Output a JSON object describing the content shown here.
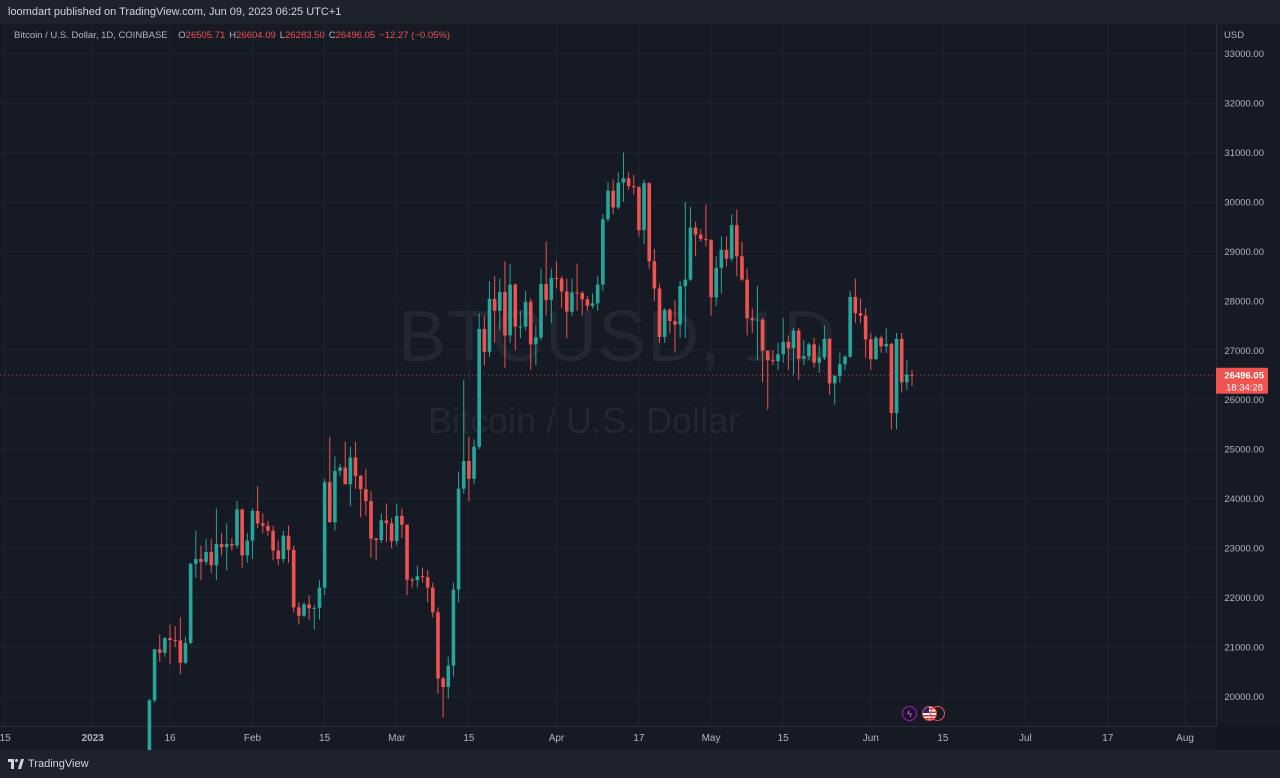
{
  "header": {
    "published": "loomdart published on TradingView.com, Jun 09, 2023 06:25 UTC+1"
  },
  "legend": {
    "symbol": "Bitcoin / U.S. Dollar, 1D, COINBASE",
    "o_label": "O",
    "o_value": "26505.71",
    "h_label": "H",
    "h_value": "26604.09",
    "l_label": "L",
    "l_value": "26283.50",
    "c_label": "C",
    "c_value": "26496.05",
    "change": "−12.27 (−0.05%)"
  },
  "currency": "USD",
  "watermark": {
    "line1": "BTCUSD, 1D",
    "line2": "Bitcoin / U.S. Dollar"
  },
  "footer": {
    "brand": "TradingView"
  },
  "badges": {
    "lightning": "lightning-icon",
    "flag": "us-flag-icon"
  },
  "colors": {
    "up": "#26a69a",
    "down": "#ef5350",
    "background": "#161a25",
    "grid": "#1f2431"
  },
  "chart_data": {
    "type": "candlestick",
    "title": "Bitcoin / U.S. Dollar, 1D, COINBASE",
    "ylim": [
      19400,
      33600
    ],
    "y_ticks": [
      20000,
      21000,
      22000,
      23000,
      24000,
      25000,
      26000,
      27000,
      28000,
      29000,
      30000,
      31000,
      32000,
      33000
    ],
    "y_tick_labels": [
      "20000.00",
      "21000.00",
      "22000.00",
      "23000.00",
      "24000.00",
      "25000.00",
      "26000.00",
      "27000.00",
      "28000.00",
      "29000.00",
      "30000.00",
      "31000.00",
      "32000.00",
      "33000.00"
    ],
    "x_ticks": [
      {
        "label": "15",
        "date": "2022-12-15"
      },
      {
        "label": "2023",
        "date": "2023-01-01"
      },
      {
        "label": "16",
        "date": "2023-01-16"
      },
      {
        "label": "Feb",
        "date": "2023-02-01"
      },
      {
        "label": "15",
        "date": "2023-02-15"
      },
      {
        "label": "Mar",
        "date": "2023-03-01"
      },
      {
        "label": "15",
        "date": "2023-03-15"
      },
      {
        "label": "Apr",
        "date": "2023-04-01"
      },
      {
        "label": "17",
        "date": "2023-04-17"
      },
      {
        "label": "May",
        "date": "2023-05-01"
      },
      {
        "label": "15",
        "date": "2023-05-15"
      },
      {
        "label": "Jun",
        "date": "2023-06-01"
      },
      {
        "label": "15",
        "date": "2023-06-15"
      },
      {
        "label": "Jul",
        "date": "2023-07-01"
      },
      {
        "label": "17",
        "date": "2023-07-17"
      },
      {
        "label": "Aug",
        "date": "2023-08-01"
      }
    ],
    "x_range": [
      "2022-12-14",
      "2023-08-07"
    ],
    "last_price_label": "26496.05",
    "countdown_label": "18:34:28",
    "last_price": 26496.05,
    "candles": [
      [
        "2023-01-12",
        18850,
        19950,
        18750,
        19920
      ],
      [
        "2023-01-13",
        19920,
        20960,
        19880,
        20950
      ],
      [
        "2023-01-14",
        20950,
        21250,
        20700,
        20880
      ],
      [
        "2023-01-15",
        20880,
        21200,
        20800,
        21180
      ],
      [
        "2023-01-16",
        21180,
        21450,
        20650,
        21140
      ],
      [
        "2023-01-17",
        21140,
        21420,
        21000,
        21130
      ],
      [
        "2023-01-18",
        21130,
        21600,
        20450,
        20680
      ],
      [
        "2023-01-19",
        20680,
        21200,
        20650,
        21080
      ],
      [
        "2023-01-20",
        21080,
        22700,
        21050,
        22680
      ],
      [
        "2023-01-21",
        22680,
        23350,
        22400,
        22780
      ],
      [
        "2023-01-22",
        22780,
        23050,
        22350,
        22720
      ],
      [
        "2023-01-23",
        22720,
        23180,
        22650,
        22920
      ],
      [
        "2023-01-24",
        22920,
        23180,
        22500,
        22650
      ],
      [
        "2023-01-25",
        22650,
        23800,
        22350,
        23080
      ],
      [
        "2023-01-26",
        23080,
        23300,
        22850,
        23020
      ],
      [
        "2023-01-27",
        23020,
        23500,
        22550,
        23080
      ],
      [
        "2023-01-28",
        23080,
        23200,
        22950,
        23050
      ],
      [
        "2023-01-29",
        23050,
        23950,
        23000,
        23780
      ],
      [
        "2023-01-30",
        23780,
        23800,
        22600,
        22850
      ],
      [
        "2023-01-31",
        22850,
        23300,
        22700,
        23150
      ],
      [
        "2023-02-01",
        23150,
        23800,
        22780,
        23750
      ],
      [
        "2023-02-02",
        23750,
        24250,
        23400,
        23500
      ],
      [
        "2023-02-03",
        23500,
        23700,
        23300,
        23450
      ],
      [
        "2023-02-04",
        23450,
        23550,
        23250,
        23350
      ],
      [
        "2023-02-05",
        23350,
        23450,
        22750,
        22950
      ],
      [
        "2023-02-06",
        22950,
        23150,
        22650,
        22780
      ],
      [
        "2023-02-07",
        22780,
        23350,
        22700,
        23250
      ],
      [
        "2023-02-08",
        23250,
        23450,
        22700,
        22960
      ],
      [
        "2023-02-09",
        22960,
        23050,
        21700,
        21800
      ],
      [
        "2023-02-10",
        21800,
        21900,
        21450,
        21630
      ],
      [
        "2023-02-11",
        21630,
        21900,
        21600,
        21860
      ],
      [
        "2023-02-12",
        21860,
        22050,
        21550,
        21780
      ],
      [
        "2023-02-13",
        21780,
        21850,
        21350,
        21790
      ],
      [
        "2023-02-14",
        21790,
        22350,
        21550,
        22200
      ],
      [
        "2023-02-15",
        22200,
        24400,
        22050,
        24330
      ],
      [
        "2023-02-16",
        24330,
        25250,
        23550,
        23520
      ],
      [
        "2023-02-17",
        23520,
        24850,
        23350,
        24560
      ],
      [
        "2023-02-18",
        24560,
        24700,
        24450,
        24630
      ],
      [
        "2023-02-19",
        24630,
        25150,
        24300,
        24290
      ],
      [
        "2023-02-20",
        24290,
        25050,
        23850,
        24830
      ],
      [
        "2023-02-21",
        24830,
        25150,
        24200,
        24460
      ],
      [
        "2023-02-22",
        24460,
        24480,
        23620,
        24190
      ],
      [
        "2023-02-23",
        24190,
        24600,
        23650,
        23950
      ],
      [
        "2023-02-24",
        23950,
        24150,
        22800,
        23190
      ],
      [
        "2023-02-25",
        23190,
        23210,
        22750,
        23160
      ],
      [
        "2023-02-26",
        23160,
        23700,
        23100,
        23560
      ],
      [
        "2023-02-27",
        23560,
        23900,
        23120,
        23500
      ],
      [
        "2023-02-28",
        23500,
        23600,
        23000,
        23140
      ],
      [
        "2023-03-01",
        23140,
        23900,
        23050,
        23650
      ],
      [
        "2023-03-02",
        23650,
        23800,
        23200,
        23470
      ],
      [
        "2023-03-03",
        23470,
        23480,
        22050,
        22360
      ],
      [
        "2023-03-04",
        22360,
        22400,
        22200,
        22350
      ],
      [
        "2023-03-05",
        22350,
        22650,
        22200,
        22430
      ],
      [
        "2023-03-06",
        22430,
        22600,
        22300,
        22410
      ],
      [
        "2023-03-07",
        22410,
        22550,
        21900,
        22200
      ],
      [
        "2023-03-08",
        22200,
        22300,
        21600,
        21700
      ],
      [
        "2023-03-09",
        21700,
        21800,
        20050,
        20360
      ],
      [
        "2023-03-10",
        20360,
        20400,
        19570,
        20190
      ],
      [
        "2023-03-11",
        20190,
        20800,
        19950,
        20620
      ],
      [
        "2023-03-12",
        20620,
        22300,
        20400,
        22160
      ],
      [
        "2023-03-13",
        22160,
        24550,
        21900,
        24200
      ],
      [
        "2023-03-14",
        24200,
        26400,
        24100,
        24760
      ],
      [
        "2023-03-15",
        24760,
        25250,
        23950,
        24400
      ],
      [
        "2023-03-16",
        24400,
        25200,
        24300,
        25050
      ],
      [
        "2023-03-17",
        25050,
        27750,
        25000,
        27430
      ],
      [
        "2023-03-18",
        27430,
        27700,
        26700,
        26970
      ],
      [
        "2023-03-19",
        26970,
        28400,
        26870,
        28040
      ],
      [
        "2023-03-20",
        28040,
        28500,
        27150,
        27800
      ],
      [
        "2023-03-21",
        27800,
        28450,
        27400,
        28180
      ],
      [
        "2023-03-22",
        28180,
        28800,
        26650,
        27300
      ],
      [
        "2023-03-23",
        27300,
        28750,
        27150,
        28330
      ],
      [
        "2023-03-24",
        28330,
        28350,
        27000,
        27480
      ],
      [
        "2023-03-25",
        27480,
        27800,
        27250,
        27480
      ],
      [
        "2023-03-26",
        27480,
        28200,
        27400,
        27980
      ],
      [
        "2023-03-27",
        27980,
        28050,
        26600,
        27120
      ],
      [
        "2023-03-28",
        27120,
        27500,
        26700,
        27260
      ],
      [
        "2023-03-29",
        27260,
        28650,
        27200,
        28340
      ],
      [
        "2023-03-30",
        28340,
        29200,
        27700,
        28020
      ],
      [
        "2023-03-31",
        28020,
        28650,
        27550,
        28460
      ],
      [
        "2023-04-01",
        28460,
        28800,
        28250,
        28450
      ],
      [
        "2023-04-02",
        28450,
        28500,
        27850,
        28190
      ],
      [
        "2023-04-03",
        28190,
        28450,
        27250,
        27780
      ],
      [
        "2023-04-04",
        27780,
        28450,
        27700,
        28170
      ],
      [
        "2023-04-05",
        28170,
        28750,
        27800,
        28160
      ],
      [
        "2023-04-06",
        28160,
        28200,
        27700,
        28030
      ],
      [
        "2023-04-07",
        28030,
        28100,
        27800,
        27900
      ],
      [
        "2023-04-08",
        27900,
        28150,
        27850,
        27950
      ],
      [
        "2023-04-09",
        27950,
        28500,
        27800,
        28330
      ],
      [
        "2023-04-10",
        28330,
        29750,
        28200,
        29650
      ],
      [
        "2023-04-11",
        29650,
        30400,
        29600,
        30230
      ],
      [
        "2023-04-12",
        30230,
        30450,
        29750,
        29890
      ],
      [
        "2023-04-13",
        29890,
        30600,
        29850,
        30390
      ],
      [
        "2023-04-14",
        30390,
        31000,
        30000,
        30480
      ],
      [
        "2023-04-15",
        30480,
        30600,
        30250,
        30320
      ],
      [
        "2023-04-16",
        30320,
        30550,
        30150,
        30300
      ],
      [
        "2023-04-17",
        30300,
        30320,
        29300,
        29430
      ],
      [
        "2023-04-18",
        29430,
        30450,
        29150,
        30380
      ],
      [
        "2023-04-19",
        30380,
        30400,
        28650,
        28800
      ],
      [
        "2023-04-20",
        28800,
        29050,
        28000,
        28250
      ],
      [
        "2023-04-21",
        28250,
        28350,
        27150,
        27270
      ],
      [
        "2023-04-22",
        27270,
        27850,
        27150,
        27820
      ],
      [
        "2023-04-23",
        27820,
        27850,
        27350,
        27590
      ],
      [
        "2023-04-24",
        27590,
        28000,
        26950,
        27520
      ],
      [
        "2023-04-25",
        27520,
        28400,
        27250,
        28300
      ],
      [
        "2023-04-26",
        28300,
        30000,
        27250,
        28430
      ],
      [
        "2023-04-27",
        28430,
        29900,
        28400,
        29480
      ],
      [
        "2023-04-28",
        29480,
        29600,
        28900,
        29340
      ],
      [
        "2023-04-29",
        29340,
        29450,
        29200,
        29250
      ],
      [
        "2023-04-30",
        29250,
        29950,
        29100,
        29230
      ],
      [
        "2023-05-01",
        29230,
        29250,
        27700,
        28070
      ],
      [
        "2023-05-02",
        28070,
        28900,
        27900,
        28670
      ],
      [
        "2023-05-03",
        28670,
        29300,
        28150,
        29030
      ],
      [
        "2023-05-04",
        29030,
        29300,
        28700,
        28850
      ],
      [
        "2023-05-05",
        28850,
        29750,
        28800,
        29530
      ],
      [
        "2023-05-06",
        29530,
        29850,
        28500,
        28900
      ],
      [
        "2023-05-07",
        28900,
        29200,
        28400,
        28430
      ],
      [
        "2023-05-08",
        28430,
        28650,
        27300,
        27650
      ],
      [
        "2023-05-09",
        27650,
        27850,
        27350,
        27620
      ],
      [
        "2023-05-10",
        27620,
        28300,
        26800,
        27620
      ],
      [
        "2023-05-11",
        27620,
        27650,
        26350,
        26990
      ],
      [
        "2023-05-12",
        26990,
        27000,
        25800,
        26800
      ],
      [
        "2023-05-13",
        26800,
        27000,
        26700,
        26780
      ],
      [
        "2023-05-14",
        26780,
        27150,
        26600,
        26920
      ],
      [
        "2023-05-15",
        26920,
        27650,
        26750,
        27170
      ],
      [
        "2023-05-16",
        27170,
        27300,
        26600,
        27040
      ],
      [
        "2023-05-17",
        27040,
        27450,
        26500,
        27400
      ],
      [
        "2023-05-18",
        27400,
        27450,
        26400,
        26830
      ],
      [
        "2023-05-19",
        26830,
        27200,
        26700,
        26880
      ],
      [
        "2023-05-20",
        26880,
        27150,
        26800,
        27120
      ],
      [
        "2023-05-21",
        27120,
        27250,
        26650,
        26750
      ],
      [
        "2023-05-22",
        26750,
        27100,
        26550,
        26850
      ],
      [
        "2023-05-23",
        26850,
        27500,
        26800,
        27230
      ],
      [
        "2023-05-24",
        27230,
        27250,
        26100,
        26330
      ],
      [
        "2023-05-25",
        26330,
        26500,
        25900,
        26480
      ],
      [
        "2023-05-26",
        26480,
        26950,
        26350,
        26720
      ],
      [
        "2023-05-27",
        26720,
        26900,
        26600,
        26870
      ],
      [
        "2023-05-28",
        26870,
        28200,
        26850,
        28080
      ],
      [
        "2023-05-29",
        28080,
        28450,
        27550,
        27750
      ],
      [
        "2023-05-30",
        27750,
        28050,
        27550,
        27700
      ],
      [
        "2023-05-31",
        27700,
        27850,
        26850,
        27220
      ],
      [
        "2023-06-01",
        27220,
        27350,
        26600,
        26820
      ],
      [
        "2023-06-02",
        26820,
        27300,
        26800,
        27250
      ],
      [
        "2023-06-03",
        27250,
        27300,
        26950,
        27080
      ],
      [
        "2023-06-04",
        27080,
        27450,
        26950,
        27130
      ],
      [
        "2023-06-05",
        27130,
        27150,
        25400,
        25730
      ],
      [
        "2023-06-06",
        25730,
        27350,
        25400,
        27230
      ],
      [
        "2023-06-07",
        27230,
        27350,
        26150,
        26350
      ],
      [
        "2023-06-08",
        26350,
        26800,
        26200,
        26510
      ],
      [
        "2023-06-09",
        26505.71,
        26604.09,
        26283.5,
        26496.05
      ]
    ]
  }
}
